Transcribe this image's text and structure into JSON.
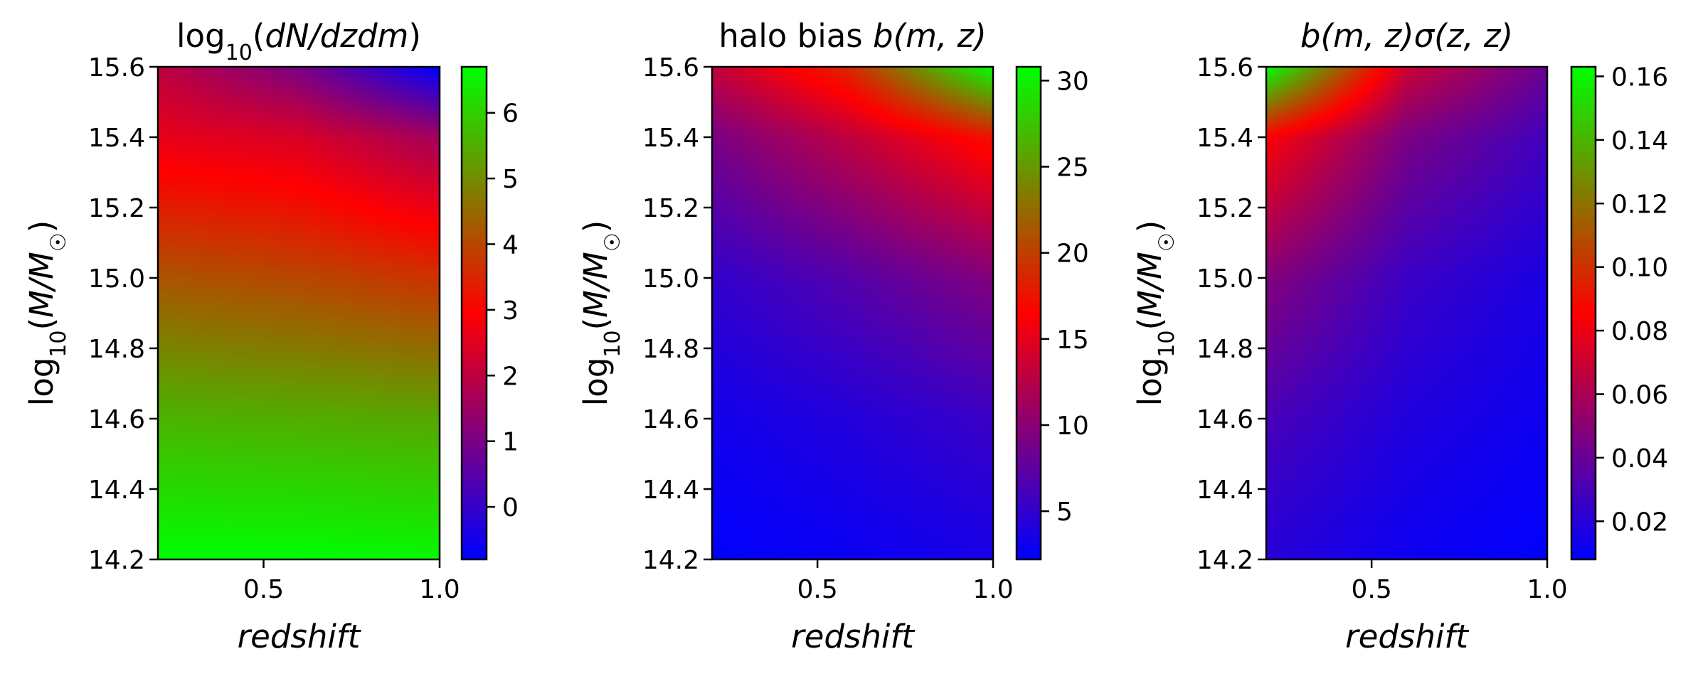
{
  "chart_data": [
    {
      "type": "heatmap",
      "title": "log10(dN/dzdm)",
      "title_main": "log",
      "title_sub": "10",
      "title_rest": "(dN/dzdm)",
      "xlabel": "redshift",
      "ylabel_main": "log",
      "ylabel_sub": "10",
      "ylabel_rest": "(M/M☉)",
      "xlim": [
        0.2,
        1.0
      ],
      "ylim": [
        14.2,
        15.6
      ],
      "xticks": [
        0.5,
        1.0
      ],
      "xtick_labels": [
        "0.5",
        "1.0"
      ],
      "yticks": [
        14.2,
        14.4,
        14.6,
        14.8,
        15.0,
        15.2,
        15.4,
        15.6
      ],
      "ytick_labels": [
        "14.2",
        "14.4",
        "14.6",
        "14.8",
        "15.0",
        "15.2",
        "15.4",
        "15.6"
      ],
      "colorbar": {
        "min": -0.8,
        "max": 6.7,
        "ticks": [
          0,
          1,
          2,
          3,
          4,
          5,
          6
        ],
        "tick_labels": [
          "0",
          "1",
          "2",
          "3",
          "4",
          "5",
          "6"
        ]
      },
      "grid_samples": {
        "x": [
          0.2,
          0.6,
          1.0
        ],
        "y": [
          14.2,
          14.6,
          15.0,
          15.4,
          15.6
        ],
        "values": [
          [
            6.7,
            6.7,
            6.6
          ],
          [
            5.6,
            5.5,
            5.4
          ],
          [
            4.2,
            4.0,
            3.7
          ],
          [
            2.6,
            2.4,
            1.6
          ],
          [
            2.0,
            1.0,
            -0.8
          ]
        ]
      }
    },
    {
      "type": "heatmap",
      "title_main": "halo bias ",
      "title_rest": "b(m, z)",
      "xlabel": "redshift",
      "ylabel_main": "log",
      "ylabel_sub": "10",
      "ylabel_rest": "(M/M☉)",
      "xlim": [
        0.2,
        1.0
      ],
      "ylim": [
        14.2,
        15.6
      ],
      "xticks": [
        0.5,
        1.0
      ],
      "xtick_labels": [
        "0.5",
        "1.0"
      ],
      "yticks": [
        14.2,
        14.4,
        14.6,
        14.8,
        15.0,
        15.2,
        15.4,
        15.6
      ],
      "ytick_labels": [
        "14.2",
        "14.4",
        "14.6",
        "14.8",
        "15.0",
        "15.2",
        "15.4",
        "15.6"
      ],
      "colorbar": {
        "min": 2.2,
        "max": 30.8,
        "ticks": [
          5,
          10,
          15,
          20,
          25,
          30
        ],
        "tick_labels": [
          "5",
          "10",
          "15",
          "20",
          "25",
          "30"
        ]
      },
      "grid_samples": {
        "x": [
          0.2,
          0.6,
          1.0
        ],
        "y": [
          14.2,
          14.6,
          15.0,
          15.4,
          15.6
        ],
        "values": [
          [
            2.2,
            2.8,
            3.5
          ],
          [
            3.2,
            4.2,
            5.5
          ],
          [
            5.0,
            7.0,
            9.5
          ],
          [
            9.0,
            13.0,
            17.5
          ],
          [
            13.0,
            19.0,
            30.8
          ]
        ]
      }
    },
    {
      "type": "heatmap",
      "title_main": "",
      "title_rest": "b(m, z)σ(z, z)",
      "xlabel": "redshift",
      "ylabel_main": "log",
      "ylabel_sub": "10",
      "ylabel_rest": "(M/M☉)",
      "xlim": [
        0.2,
        1.0
      ],
      "ylim": [
        14.2,
        15.6
      ],
      "xticks": [
        0.5,
        1.0
      ],
      "xtick_labels": [
        "0.5",
        "1.0"
      ],
      "yticks": [
        14.2,
        14.4,
        14.6,
        14.8,
        15.0,
        15.2,
        15.4,
        15.6
      ],
      "ytick_labels": [
        "14.2",
        "14.4",
        "14.6",
        "14.8",
        "15.0",
        "15.2",
        "15.4",
        "15.6"
      ],
      "colorbar": {
        "min": 0.008,
        "max": 0.163,
        "ticks": [
          0.02,
          0.04,
          0.06,
          0.08,
          0.1,
          0.12,
          0.14,
          0.16
        ],
        "tick_labels": [
          "0.02",
          "0.04",
          "0.06",
          "0.08",
          "0.10",
          "0.12",
          "0.14",
          "0.16"
        ]
      },
      "grid_samples": {
        "x": [
          0.2,
          0.6,
          1.0
        ],
        "y": [
          14.2,
          14.6,
          15.0,
          15.4,
          15.6
        ],
        "values": [
          [
            0.02,
            0.012,
            0.008
          ],
          [
            0.03,
            0.018,
            0.012
          ],
          [
            0.048,
            0.026,
            0.016
          ],
          [
            0.085,
            0.045,
            0.028
          ],
          [
            0.163,
            0.07,
            0.04
          ]
        ]
      }
    }
  ],
  "colormap": {
    "name": "brg",
    "low": "#0000ff",
    "mid": "#ff0000",
    "high": "#00ff00"
  }
}
